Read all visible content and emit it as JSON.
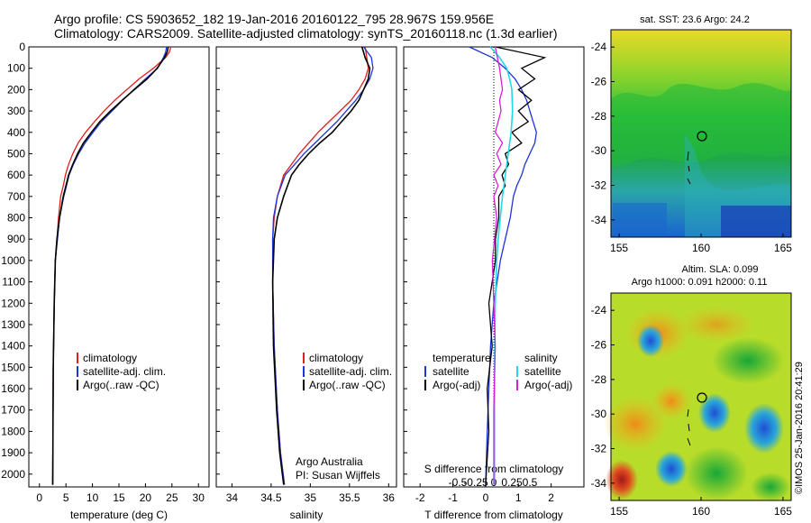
{
  "title": {
    "line1": "Argo profile: CS 5903652_182 19-Jan-2016 20160122_795 28.967S 159.956E",
    "line2": "Climatology: CARS2009. Satellite-adjusted climatology: synTS_20160118.nc (1.3d earlier)"
  },
  "colors": {
    "climatology": "#e11d1d",
    "satellite": "#1d35d8",
    "argo": "#000000",
    "satellite_s": "#22d8e6",
    "argo_s": "#d81fd8"
  },
  "depth_ticks": [
    0,
    100,
    200,
    300,
    400,
    500,
    600,
    700,
    800,
    900,
    1000,
    1100,
    1200,
    1300,
    1400,
    1500,
    1600,
    1700,
    1800,
    1900,
    2000
  ],
  "panels": {
    "temperature": {
      "xlabel": "temperature (deg C)",
      "xticks": [
        "0",
        "5",
        "10",
        "15",
        "20",
        "25",
        "30"
      ]
    },
    "salinity": {
      "xlabel": "salinity",
      "xticks": [
        "34",
        "34.5",
        "35",
        "35.5",
        "36"
      ],
      "credit1": "Argo Australia",
      "credit2": "PI: Susan Wijffels"
    },
    "difference": {
      "xlabel": "T difference from climatology",
      "xticks": [
        "-2",
        "-1",
        "0",
        "1",
        "2"
      ],
      "top_label": "S difference from climatology",
      "top_ticks": [
        "-0.5",
        "-0.25",
        "0",
        "0.25",
        "0.5"
      ]
    },
    "sst_map": {
      "title": "sat. SST: 23.6  Argo: 24.2",
      "xticks": [
        "155",
        "160",
        "165"
      ],
      "yticks": [
        "-24",
        "-26",
        "-28",
        "-30",
        "-32",
        "-34"
      ]
    },
    "sla_map": {
      "title1": "Altim. SLA: 0.099",
      "title2": "Argo h1000: 0.091 h2000: 0.11",
      "xticks": [
        "155",
        "160",
        "165"
      ],
      "yticks": [
        "-24",
        "-26",
        "-28",
        "-30",
        "-32",
        "-34"
      ]
    }
  },
  "legends": {
    "profile": [
      "climatology",
      "satellite-adj. clim.",
      "Argo(..raw -QC)"
    ],
    "temperature_head": "temperature",
    "salinity_head": "salinity",
    "diff_t": [
      "satellite",
      "Argo(-adj)"
    ],
    "diff_s": [
      "satellite",
      "Argo(-adj)"
    ]
  },
  "stamp": "©IMOS 25-Jan-2016 20:41:29",
  "chart_data": [
    {
      "type": "line",
      "title": "",
      "xlabel": "temperature (deg C)",
      "ylabel": "",
      "xlim": [
        -2,
        32
      ],
      "ylim": [
        2060,
        0
      ],
      "series": [
        {
          "name": "climatology",
          "x": [
            24.8,
            24.5,
            23.8,
            21.5,
            18.8,
            16.5,
            14.2,
            12.2,
            10.4,
            8.7,
            7.3,
            6.3,
            5.5,
            4.9,
            4.5,
            4.0,
            3.6,
            3.3,
            3.0,
            2.8,
            2.6,
            2.5
          ],
          "y": [
            0,
            25,
            50,
            100,
            150,
            200,
            250,
            300,
            350,
            400,
            450,
            500,
            550,
            600,
            650,
            700,
            800,
            900,
            1000,
            1200,
            1500,
            2050
          ]
        },
        {
          "name": "satellite-adj. clim.",
          "x": [
            24.0,
            23.8,
            23.4,
            22.3,
            20.0,
            17.8,
            15.7,
            13.7,
            11.7,
            10.1,
            8.6,
            7.4,
            6.4,
            5.6,
            5.1,
            4.6,
            3.8,
            3.4,
            3.0,
            2.8,
            2.6,
            2.5
          ],
          "y": [
            0,
            25,
            50,
            100,
            150,
            200,
            250,
            300,
            350,
            400,
            450,
            500,
            550,
            600,
            650,
            700,
            800,
            900,
            1000,
            1200,
            1500,
            2050
          ]
        },
        {
          "name": "Argo(..raw -QC)",
          "x": [
            24.3,
            24.1,
            23.6,
            22.2,
            20.3,
            17.9,
            15.6,
            13.4,
            11.4,
            9.8,
            8.3,
            7.2,
            6.3,
            5.5,
            5.0,
            4.5,
            3.8,
            3.3,
            3.0,
            2.8,
            2.6,
            2.5
          ],
          "y": [
            0,
            25,
            50,
            100,
            150,
            200,
            250,
            300,
            350,
            400,
            450,
            500,
            550,
            600,
            650,
            700,
            800,
            900,
            1000,
            1200,
            1500,
            2050
          ]
        }
      ]
    },
    {
      "type": "line",
      "title": "",
      "xlabel": "salinity",
      "ylabel": "",
      "xlim": [
        33.8,
        36.1
      ],
      "ylim": [
        2060,
        0
      ],
      "series": [
        {
          "name": "climatology",
          "x": [
            35.7,
            35.72,
            35.74,
            35.7,
            35.62,
            35.52,
            35.38,
            35.24,
            35.1,
            34.98,
            34.86,
            34.76,
            34.66,
            34.58,
            34.54,
            34.52,
            34.52,
            34.54,
            34.58,
            34.62,
            34.67
          ],
          "y": [
            0,
            50,
            100,
            150,
            200,
            250,
            300,
            350,
            400,
            450,
            500,
            550,
            600,
            700,
            800,
            900,
            1100,
            1400,
            1700,
            1900,
            2050
          ]
        },
        {
          "name": "satellite-adj. clim.",
          "x": [
            35.68,
            35.78,
            35.8,
            35.76,
            35.68,
            35.58,
            35.46,
            35.34,
            35.2,
            35.06,
            34.92,
            34.8,
            34.68,
            34.58,
            34.53,
            34.52,
            34.52,
            34.54,
            34.58,
            34.62,
            34.67
          ],
          "y": [
            0,
            50,
            100,
            150,
            200,
            250,
            300,
            350,
            400,
            450,
            500,
            550,
            600,
            700,
            800,
            900,
            1100,
            1400,
            1700,
            1900,
            2050
          ]
        },
        {
          "name": "Argo(..raw -QC)",
          "x": [
            35.66,
            35.7,
            35.76,
            35.74,
            35.68,
            35.62,
            35.52,
            35.4,
            35.28,
            35.12,
            34.98,
            34.86,
            34.76,
            34.66,
            34.58,
            34.54,
            34.52,
            34.53,
            34.57,
            34.61,
            34.66
          ],
          "y": [
            0,
            50,
            100,
            150,
            200,
            250,
            300,
            350,
            400,
            450,
            500,
            550,
            600,
            700,
            800,
            900,
            1100,
            1400,
            1700,
            1900,
            2050
          ]
        }
      ]
    },
    {
      "type": "line",
      "title": "",
      "xlabel": "T difference from climatology",
      "ylabel": "",
      "xlim": [
        -2.5,
        3
      ],
      "ylim": [
        2060,
        0
      ],
      "series": [
        {
          "name": "temperature satellite",
          "x": [
            -0.5,
            0.2,
            0.6,
            0.9,
            1.1,
            1.25,
            1.35,
            1.45,
            1.55,
            1.5,
            1.35,
            1.2,
            1.1,
            0.95,
            0.85,
            0.75,
            0.6,
            0.45,
            0.35,
            0.25,
            0.15,
            0.1,
            0.05,
            0.02,
            0.0
          ],
          "y": [
            0,
            50,
            100,
            150,
            200,
            250,
            300,
            350,
            400,
            450,
            500,
            550,
            600,
            650,
            700,
            800,
            900,
            1000,
            1100,
            1200,
            1400,
            1600,
            1800,
            1950,
            2050
          ]
        },
        {
          "name": "temperature Argo(-adj)",
          "x": [
            0.3,
            1.8,
            1.1,
            1.5,
            1.0,
            1.4,
            1.0,
            1.3,
            0.8,
            1.1,
            0.6,
            0.7,
            0.5,
            0.6,
            0.4,
            0.4,
            0.3,
            0.3,
            0.2,
            0.1,
            0.2,
            0.05,
            0.1,
            0.0
          ],
          "y": [
            0,
            50,
            100,
            150,
            200,
            250,
            300,
            350,
            400,
            450,
            500,
            550,
            600,
            650,
            700,
            800,
            900,
            1000,
            1100,
            1200,
            1400,
            1600,
            1800,
            2050
          ]
        },
        {
          "name": "salinity satellite",
          "x": [
            -0.05,
            0.08,
            0.18,
            0.22,
            0.25,
            0.26,
            0.24,
            0.2,
            0.16,
            0.12,
            0.09,
            0.06,
            0.04,
            0.02,
            0.01,
            0.01
          ],
          "y": [
            0,
            50,
            100,
            150,
            200,
            300,
            400,
            500,
            600,
            700,
            800,
            900,
            1000,
            1200,
            1500,
            2050
          ]
        },
        {
          "name": "salinity Argo(-adj)",
          "x": [
            0.02,
            0.08,
            0.12,
            0.08,
            0.1,
            0.06,
            0.02,
            0.12,
            0.04,
            0.1,
            0.0,
            0.06,
            0.0,
            0.04,
            -0.02,
            0.02,
            0.0,
            0.0
          ],
          "y": [
            0,
            100,
            200,
            250,
            300,
            350,
            400,
            450,
            500,
            550,
            600,
            650,
            700,
            800,
            1000,
            1400,
            1700,
            2050
          ]
        }
      ]
    },
    {
      "type": "heatmap",
      "title": "sat. SST: 23.6  Argo: 24.2",
      "xlabel": "",
      "ylabel": "",
      "xlim": [
        154.5,
        165.5
      ],
      "ylim": [
        -35,
        -23
      ],
      "markers": [
        {
          "lon": 159.956,
          "lat": -28.967
        }
      ]
    },
    {
      "type": "heatmap",
      "title": "Altim. SLA: 0.099 / Argo h1000: 0.091 h2000: 0.11",
      "xlabel": "",
      "ylabel": "",
      "xlim": [
        154.5,
        165.5
      ],
      "ylim": [
        -35,
        -23
      ],
      "markers": [
        {
          "lon": 159.956,
          "lat": -28.967
        }
      ]
    }
  ]
}
